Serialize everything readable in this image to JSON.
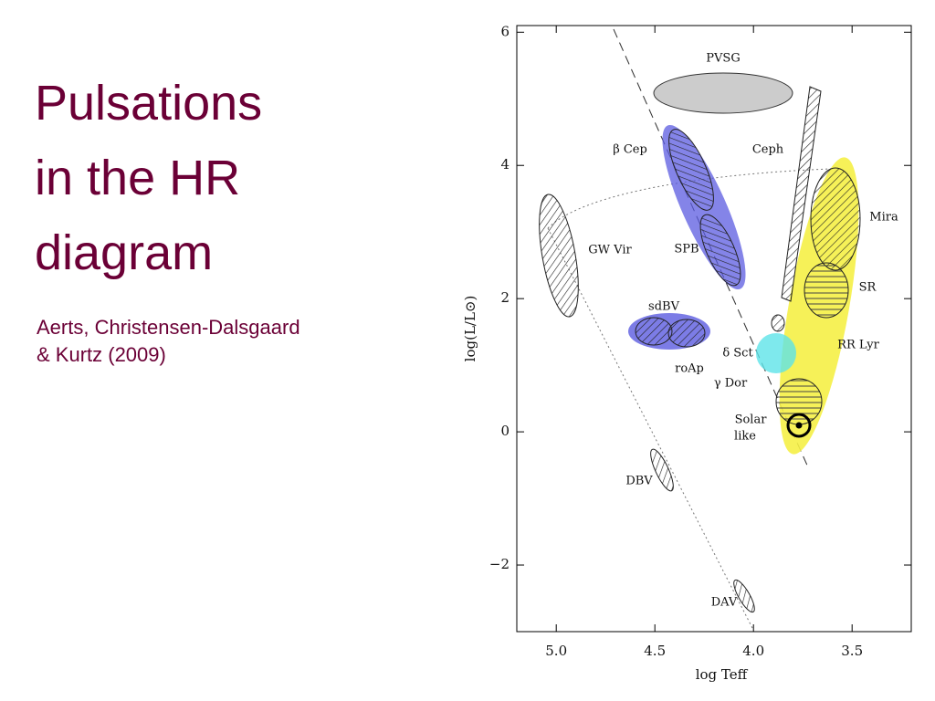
{
  "title": [
    "Pulsations",
    "in the HR",
    "diagram"
  ],
  "subtitle": [
    "Aerts, Christensen-Dalsgaard",
    "& Kurtz  (2009)"
  ],
  "figure": {
    "x_label": "log Teff",
    "y_label": "log(L/L⊙)",
    "xlim": [
      5.2,
      3.2
    ],
    "ylim": [
      -3,
      6.1
    ],
    "xticks": [
      {
        "value": 5,
        "label": "5.0"
      },
      {
        "value": 4.5,
        "label": "4.5"
      },
      {
        "value": 4,
        "label": "4.0"
      },
      {
        "value": 3.5,
        "label": "3.5"
      }
    ],
    "yticks": [
      {
        "value": -2,
        "label": "−2"
      },
      0,
      2,
      4,
      6
    ],
    "regions": [
      "PVSG",
      "β Cep",
      "Ceph",
      "Mira",
      "GW Vir",
      "SPB",
      "SR",
      "sdBV",
      "RR Lyr",
      "δ Sct",
      "roAp",
      "γ Dor",
      "Solar",
      "like",
      "DBV",
      "DAV"
    ]
  }
}
